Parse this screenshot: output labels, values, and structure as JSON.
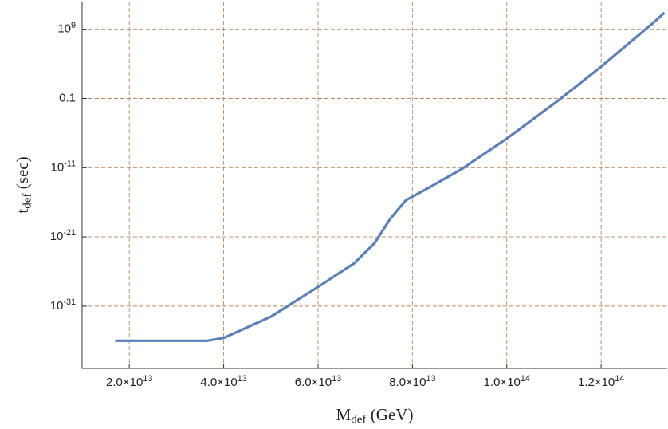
{
  "chart_data": {
    "type": "line",
    "x_label": "M_{def} (GeV)",
    "y_label": "t_{def} (sec)",
    "x": [
      17000000000000.0,
      36500000000000.0,
      40000000000000.0,
      50000000000000.0,
      60000000000000.0,
      67700000000000.0,
      72000000000000.0,
      75300000000000.0,
      78600000000000.0,
      83700000000000.0,
      90400000000000.0,
      100000000000000.0,
      110700000000000.0,
      120000000000000.0,
      131000000000000.0,
      133400000000000.0
    ],
    "series": [
      {
        "color": "#5b7fb7",
        "values": [
          1e-36,
          1e-36,
          2.5e-36,
          3e-33,
          6e-29,
          1.6e-25,
          1.3e-22,
          4e-19,
          2e-16,
          1.6e-14,
          6e-12,
          1.6e-07,
          0.04,
          4000,
          8000000000.0,
          250000000000.0
        ]
      }
    ],
    "xlim": [
      10000000000000.0,
      134000000000000.0
    ],
    "ylim": [
      1e-40,
      10000000000000.0
    ],
    "ylog": true,
    "grid": true,
    "xticks": [
      {
        "value": 20000000000000.0,
        "label": "2.0×10^{13}"
      },
      {
        "value": 40000000000000.0,
        "label": "4.0×10^{13}"
      },
      {
        "value": 60000000000000.0,
        "label": "6.0×10^{13}"
      },
      {
        "value": 80000000000000.0,
        "label": "8.0×10^{13}"
      },
      {
        "value": 100000000000000.0,
        "label": "1.0×10^{14}"
      },
      {
        "value": 120000000000000.0,
        "label": "1.2×10^{14}"
      }
    ],
    "yticks": [
      {
        "value": 1e-31,
        "label": "10^{-31}"
      },
      {
        "value": 1e-21,
        "label": "10^{-21}"
      },
      {
        "value": 1e-11,
        "label": "10^{-11}"
      },
      0.1,
      {
        "value": 1000000000.0,
        "label": "10^{9}"
      }
    ]
  }
}
